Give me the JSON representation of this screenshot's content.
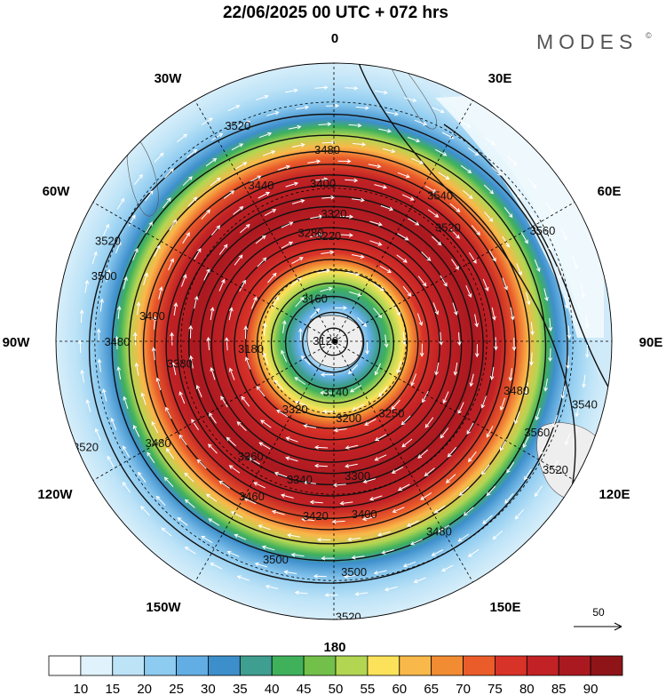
{
  "header": {
    "title": "22/06/2025  00 UTC  + 072 hrs",
    "brand": "MODES",
    "brand_mark": "©"
  },
  "map": {
    "projection": "south-polar-stereographic",
    "longitude_labels": [
      {
        "name": "lon-label-0",
        "text": "0",
        "lon": 0
      },
      {
        "name": "lon-label-30e",
        "text": "30E",
        "lon": 30
      },
      {
        "name": "lon-label-60e",
        "text": "60E",
        "lon": 60
      },
      {
        "name": "lon-label-90e",
        "text": "90E",
        "lon": 90
      },
      {
        "name": "lon-label-120e",
        "text": "120E",
        "lon": 120
      },
      {
        "name": "lon-label-150e",
        "text": "150E",
        "lon": 150
      },
      {
        "name": "lon-label-180",
        "text": "180",
        "lon": 180
      },
      {
        "name": "lon-label-150w",
        "text": "150W",
        "lon": -150
      },
      {
        "name": "lon-label-120w",
        "text": "120W",
        "lon": -120
      },
      {
        "name": "lon-label-90w",
        "text": "90W",
        "lon": -90
      },
      {
        "name": "lon-label-60w",
        "text": "60W",
        "lon": -60
      },
      {
        "name": "lon-label-30w",
        "text": "30W",
        "lon": -30
      }
    ],
    "geopotential_contour_labels": [
      {
        "text": "3520",
        "angle": -24,
        "rad": 0.85
      },
      {
        "text": "3480",
        "angle": -2,
        "rad": 0.69
      },
      {
        "text": "3440",
        "angle": -25,
        "rad": 0.62
      },
      {
        "text": "3400",
        "angle": -4,
        "rad": 0.57
      },
      {
        "text": "3320",
        "angle": 0,
        "rad": 0.46
      },
      {
        "text": "3280",
        "angle": -12,
        "rad": 0.4
      },
      {
        "text": "3220",
        "angle": -3,
        "rad": 0.38
      },
      {
        "text": "3160",
        "angle": -24,
        "rad": 0.17
      },
      {
        "text": "3120",
        "angle": -84,
        "rad": 0.03
      },
      {
        "text": "3180",
        "angle": -95,
        "rad": 0.3
      },
      {
        "text": "3540",
        "angle": 36,
        "rad": 0.65
      },
      {
        "text": "3520",
        "angle": 45,
        "rad": 0.58
      },
      {
        "text": "3560",
        "angle": 62,
        "rad": 0.85
      },
      {
        "text": "3540",
        "angle": 104,
        "rad": 0.93
      },
      {
        "text": "3520",
        "angle": -66,
        "rad": 0.89
      },
      {
        "text": "3500",
        "angle": -74,
        "rad": 0.86
      },
      {
        "text": "3480",
        "angle": -90,
        "rad": 0.78
      },
      {
        "text": "3400",
        "angle": -82,
        "rad": 0.66
      },
      {
        "text": "3380",
        "angle": -98,
        "rad": 0.56
      },
      {
        "text": "3520",
        "angle": -113,
        "rad": 0.97
      },
      {
        "text": "3480",
        "angle": -120,
        "rad": 0.73
      },
      {
        "text": "3360",
        "angle": -144,
        "rad": 0.51
      },
      {
        "text": "3340",
        "angle": -166,
        "rad": 0.51
      },
      {
        "text": "3300",
        "angle": 170,
        "rad": 0.49
      },
      {
        "text": "3200",
        "angle": 169,
        "rad": 0.28
      },
      {
        "text": "3140",
        "angle": 178,
        "rad": 0.18
      },
      {
        "text": "3250",
        "angle": 141,
        "rad": 0.33
      },
      {
        "text": "3420",
        "angle": -174,
        "rad": 0.63
      },
      {
        "text": "3400",
        "angle": 170,
        "rad": 0.63
      },
      {
        "text": "3460",
        "angle": -152,
        "rad": 0.63
      },
      {
        "text": "3480",
        "angle": 151,
        "rad": 0.78
      },
      {
        "text": "3500",
        "angle": -165,
        "rad": 0.81
      },
      {
        "text": "3500",
        "angle": 175,
        "rad": 0.83
      },
      {
        "text": "3520",
        "angle": 177,
        "rad": 0.99
      },
      {
        "text": "3520",
        "angle": 120,
        "rad": 0.92
      },
      {
        "text": "3560",
        "angle": 114,
        "rad": 0.8
      },
      {
        "text": "3480",
        "angle": 105,
        "rad": 0.68
      },
      {
        "text": "3320",
        "angle": -150,
        "rad": 0.28
      }
    ],
    "reference_vector": {
      "label": "50"
    },
    "colors": {
      "ocean_low": "#ffffff",
      "grid": "#000000",
      "vector": "#ffffff"
    }
  },
  "colorbar": {
    "palette": [
      "#ffffff",
      "#e0f3fc",
      "#bde3f7",
      "#8ecbf0",
      "#62aee4",
      "#3d8fcc",
      "#3e9e90",
      "#3fb15b",
      "#72c04a",
      "#b2d652",
      "#fbe25a",
      "#f9b84a",
      "#f28c33",
      "#ea5c2a",
      "#d83328",
      "#c22225",
      "#ab1920",
      "#8e1418"
    ],
    "tick_labels": [
      "10",
      "15",
      "20",
      "25",
      "30",
      "35",
      "40",
      "45",
      "50",
      "55",
      "60",
      "65",
      "70",
      "75",
      "80",
      "85",
      "90"
    ]
  }
}
